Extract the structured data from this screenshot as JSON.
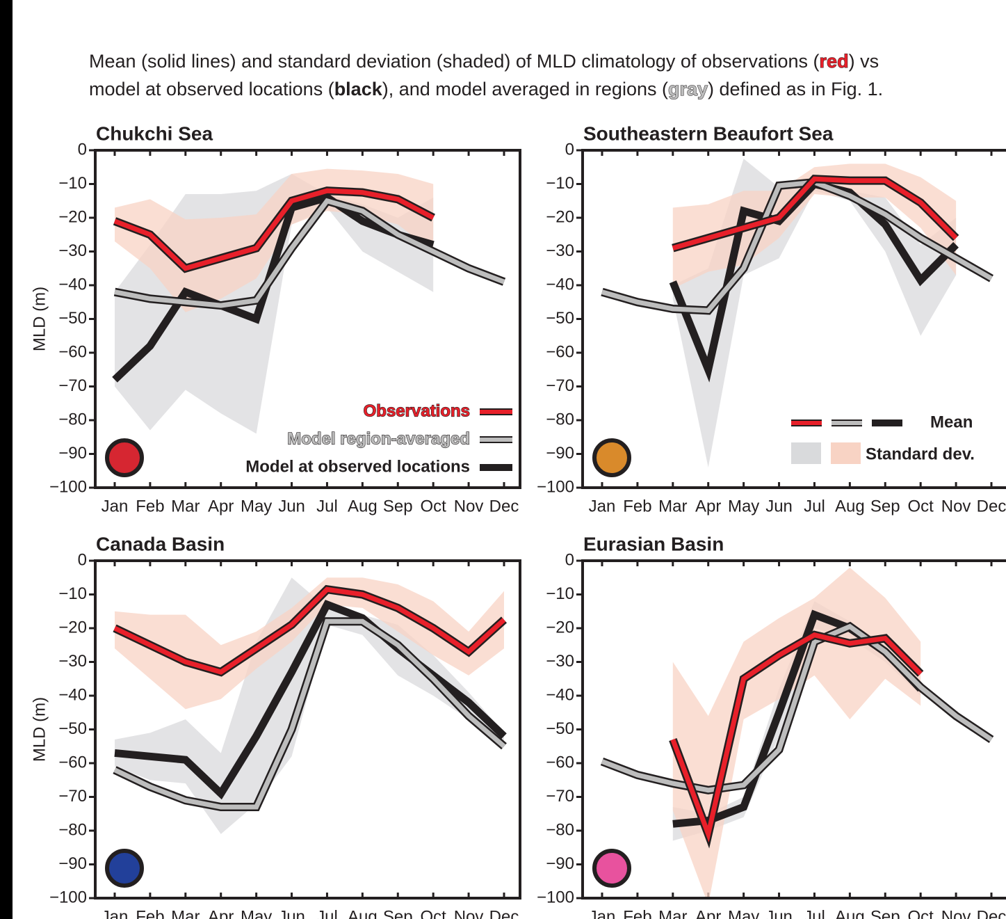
{
  "caption": [
    "Mean (solid lines) and standard deviation (shaded) of MLD climatology of observations (",
    "red",
    ") vs",
    "model at observed locations (",
    "black",
    "), and model averaged in regions (",
    "gray",
    ") defined as in Fig. 1."
  ],
  "caption_colors": [
    "#e8202a",
    "#231f20",
    "#bdbdbd"
  ],
  "chart_data": [
    {
      "type": "line",
      "title": "Chukchi Sea",
      "ylabel": "MLD (m)",
      "region_color": "#d62631",
      "categories": [
        "Jan",
        "Feb",
        "Mar",
        "Apr",
        "May",
        "Jun",
        "Jul",
        "Aug",
        "Sep",
        "Oct",
        "Nov",
        "Dec"
      ],
      "ylim": [
        -100,
        0
      ],
      "yticks": [
        0,
        {
          "value": -10,
          "label": "−10"
        },
        {
          "value": -20,
          "label": "−20"
        },
        {
          "value": -30,
          "label": "−30"
        },
        {
          "value": -40,
          "label": "−40"
        },
        {
          "value": -50,
          "label": "−50"
        },
        {
          "value": -60,
          "label": "−60"
        },
        {
          "value": -70,
          "label": "−70"
        },
        {
          "value": -80,
          "label": "−80"
        },
        {
          "value": -90,
          "label": "−90"
        },
        {
          "value": -100,
          "label": "−100"
        }
      ],
      "series": [
        {
          "name": "Model at observed locations",
          "color": "#231f20",
          "band_color": "#d9dadc",
          "values": [
            -68,
            -58,
            -42,
            -46,
            -50,
            -17,
            -14,
            -21,
            -25,
            -28,
            null,
            null
          ],
          "band_upper": [
            -42,
            -28,
            -13,
            -13,
            -12,
            -7,
            -13,
            -16,
            -20,
            -14,
            null,
            null
          ],
          "band_lower": [
            -70,
            -83,
            -71,
            -78,
            -84,
            -22,
            -17,
            -30,
            -36,
            -42,
            null,
            null
          ]
        },
        {
          "name": "Model region-averaged",
          "color": "#bdbdbd",
          "values": [
            -42,
            -44,
            -45,
            -46,
            -44.5,
            -29,
            -15,
            -18,
            -25,
            -30,
            -35,
            -39
          ]
        },
        {
          "name": "Observations",
          "color": "#e8202a",
          "band_color": "#f8d3c4",
          "values": [
            -21,
            -25,
            -35,
            -32,
            -29,
            -15,
            -12,
            -12.5,
            -14.5,
            -20,
            null,
            null
          ],
          "band_upper": [
            -17,
            -14.5,
            -20.5,
            -20,
            -19,
            -7,
            -5.5,
            -6,
            -7,
            -10,
            null,
            null
          ],
          "band_lower": [
            -27,
            -35,
            -48,
            -44,
            -38,
            -22,
            -18,
            -19,
            -22,
            -30,
            null,
            null
          ]
        }
      ]
    },
    {
      "type": "line",
      "title": "Southeastern Beaufort Sea",
      "region_color": "#d98a2b",
      "legend_mean": "Mean",
      "legend_std": "Standard dev.",
      "categories": [
        "Jan",
        "Feb",
        "Mar",
        "Apr",
        "May",
        "Jun",
        "Jul",
        "Aug",
        "Sep",
        "Oct",
        "Nov",
        "Dec"
      ],
      "ylim": [
        -100,
        0
      ],
      "yticks": [
        0,
        {
          "value": -10,
          "label": "−10"
        },
        {
          "value": -20,
          "label": "−20"
        },
        {
          "value": -30,
          "label": "−30"
        },
        {
          "value": -40,
          "label": "−40"
        },
        {
          "value": -50,
          "label": "−50"
        },
        {
          "value": -60,
          "label": "−60"
        },
        {
          "value": -70,
          "label": "−70"
        },
        {
          "value": -80,
          "label": "−80"
        },
        {
          "value": -90,
          "label": "−90"
        },
        {
          "value": -100,
          "label": "−100"
        }
      ],
      "series": [
        {
          "color": "#231f20",
          "band_color": "#d9dadc",
          "values": [
            null,
            null,
            -39,
            -65,
            -18,
            -21,
            -10,
            -12.5,
            -22,
            -38.5,
            -28,
            null
          ],
          "band_upper": [
            null,
            null,
            -40,
            -35,
            -2.5,
            -11,
            -9,
            -12,
            -14,
            -28,
            -20,
            null
          ],
          "band_lower": [
            null,
            null,
            -44,
            -94,
            -37,
            -32,
            -12,
            -15,
            -30,
            -55,
            -37,
            null
          ]
        },
        {
          "color": "#bdbdbd",
          "values": [
            -42,
            -45,
            -47,
            -47.5,
            -35,
            -10.5,
            -9.5,
            -13.5,
            -19,
            -26,
            -32,
            -38
          ]
        },
        {
          "color": "#e8202a",
          "band_color": "#f8d3c4",
          "values": [
            null,
            null,
            -29,
            -26,
            -23,
            -20,
            -8.5,
            -9,
            -9,
            -15.5,
            -26,
            null
          ],
          "band_upper": [
            null,
            null,
            -17,
            -16,
            -12,
            -12,
            -5,
            -4,
            -4,
            -8,
            -15,
            null
          ],
          "band_lower": [
            null,
            null,
            -41,
            -36,
            -34,
            -26,
            -13,
            -14,
            -14,
            -23,
            -37,
            null
          ]
        }
      ]
    },
    {
      "type": "line",
      "title": "Canada Basin",
      "ylabel": "MLD (m)",
      "region_color": "#22409a",
      "categories": [
        "Jan",
        "Feb",
        "Mar",
        "Apr",
        "May",
        "Jun",
        "Jul",
        "Aug",
        "Sep",
        "Oct",
        "Nov",
        "Dec"
      ],
      "ylim": [
        -100,
        0
      ],
      "yticks": [
        0,
        {
          "value": -10,
          "label": "−10"
        },
        {
          "value": -20,
          "label": "−20"
        },
        {
          "value": -30,
          "label": "−30"
        },
        {
          "value": -40,
          "label": "−40"
        },
        {
          "value": -50,
          "label": "−50"
        },
        {
          "value": -60,
          "label": "−60"
        },
        {
          "value": -70,
          "label": "−70"
        },
        {
          "value": -80,
          "label": "−80"
        },
        {
          "value": -90,
          "label": "−90"
        },
        {
          "value": -100,
          "label": "−100"
        }
      ],
      "series": [
        {
          "color": "#231f20",
          "band_color": "#d9dadc",
          "values": [
            -57,
            -58,
            -59,
            -69,
            -52,
            -33,
            -13,
            -17,
            -26,
            -34,
            -42,
            -52
          ],
          "band_upper": [
            -53,
            -51,
            -47,
            -57,
            -24,
            -5,
            -14,
            -16,
            -19,
            -28,
            -39,
            -51
          ],
          "band_lower": [
            -61,
            -65,
            -66,
            -81,
            -72,
            -58,
            -19,
            -22,
            -34,
            -40,
            -47,
            -55
          ]
        },
        {
          "color": "#bdbdbd",
          "values": [
            -62,
            -67,
            -71,
            -73,
            -73,
            -50,
            -18,
            -18,
            -25,
            -35,
            -46,
            -55
          ]
        },
        {
          "color": "#e8202a",
          "band_color": "#f8d3c4",
          "values": [
            -20,
            -25,
            -30,
            -33,
            -26,
            -19,
            -8.5,
            -10,
            -14,
            -20,
            -27,
            -17.5
          ],
          "band_upper": [
            -15,
            -16,
            -16,
            -25,
            -21,
            -14,
            -5,
            -5,
            -7,
            -12,
            -21,
            -9
          ],
          "band_lower": [
            -26,
            -35,
            -44,
            -41,
            -32,
            -24,
            -13,
            -14,
            -21,
            -28,
            -34,
            -26
          ]
        }
      ]
    },
    {
      "type": "line",
      "title": "Eurasian Basin",
      "region_color": "#e8529e",
      "categories": [
        "Jan",
        "Feb",
        "Mar",
        "Apr",
        "May",
        "Jun",
        "Jul",
        "Aug",
        "Sep",
        "Oct",
        "Nov",
        "Dec"
      ],
      "ylim": [
        -100,
        0
      ],
      "yticks": [
        0,
        {
          "value": -10,
          "label": "−10"
        },
        {
          "value": -20,
          "label": "−20"
        },
        {
          "value": -30,
          "label": "−30"
        },
        {
          "value": -40,
          "label": "−40"
        },
        {
          "value": -50,
          "label": "−50"
        },
        {
          "value": -60,
          "label": "−60"
        },
        {
          "value": -70,
          "label": "−70"
        },
        {
          "value": -80,
          "label": "−80"
        },
        {
          "value": -90,
          "label": "−90"
        },
        {
          "value": -100,
          "label": "−100"
        }
      ],
      "series": [
        {
          "color": "#231f20",
          "band_color": "#d9dadc",
          "values": [
            null,
            null,
            -78,
            -77,
            -73,
            -45,
            -16,
            -20,
            -27,
            -38,
            null,
            null
          ],
          "band_upper": [
            null,
            null,
            -73,
            -75,
            -70,
            -38,
            -12,
            -18,
            -25,
            -36,
            null,
            null
          ],
          "band_lower": [
            null,
            null,
            -83,
            -80,
            -76,
            -52,
            -20,
            -23,
            -30,
            -40,
            null,
            null
          ]
        },
        {
          "color": "#bdbdbd",
          "values": [
            -59.5,
            -63.5,
            -66,
            -68,
            -66.5,
            -56,
            -24,
            -19.5,
            -27,
            -37.5,
            -46,
            -53
          ]
        },
        {
          "color": "#e8202a",
          "band_color": "#f8d3c4",
          "values": [
            null,
            null,
            -53,
            -81,
            -35,
            -28,
            -22,
            -24.5,
            -23,
            -33.5,
            null,
            null
          ],
          "band_upper": [
            null,
            null,
            -30,
            -46,
            -24,
            -17,
            -11,
            -2,
            -11,
            -24,
            null,
            null
          ],
          "band_lower": [
            null,
            null,
            -74,
            -102,
            -47,
            -41,
            -34,
            -47,
            -35,
            -43,
            null,
            null
          ]
        }
      ]
    }
  ]
}
